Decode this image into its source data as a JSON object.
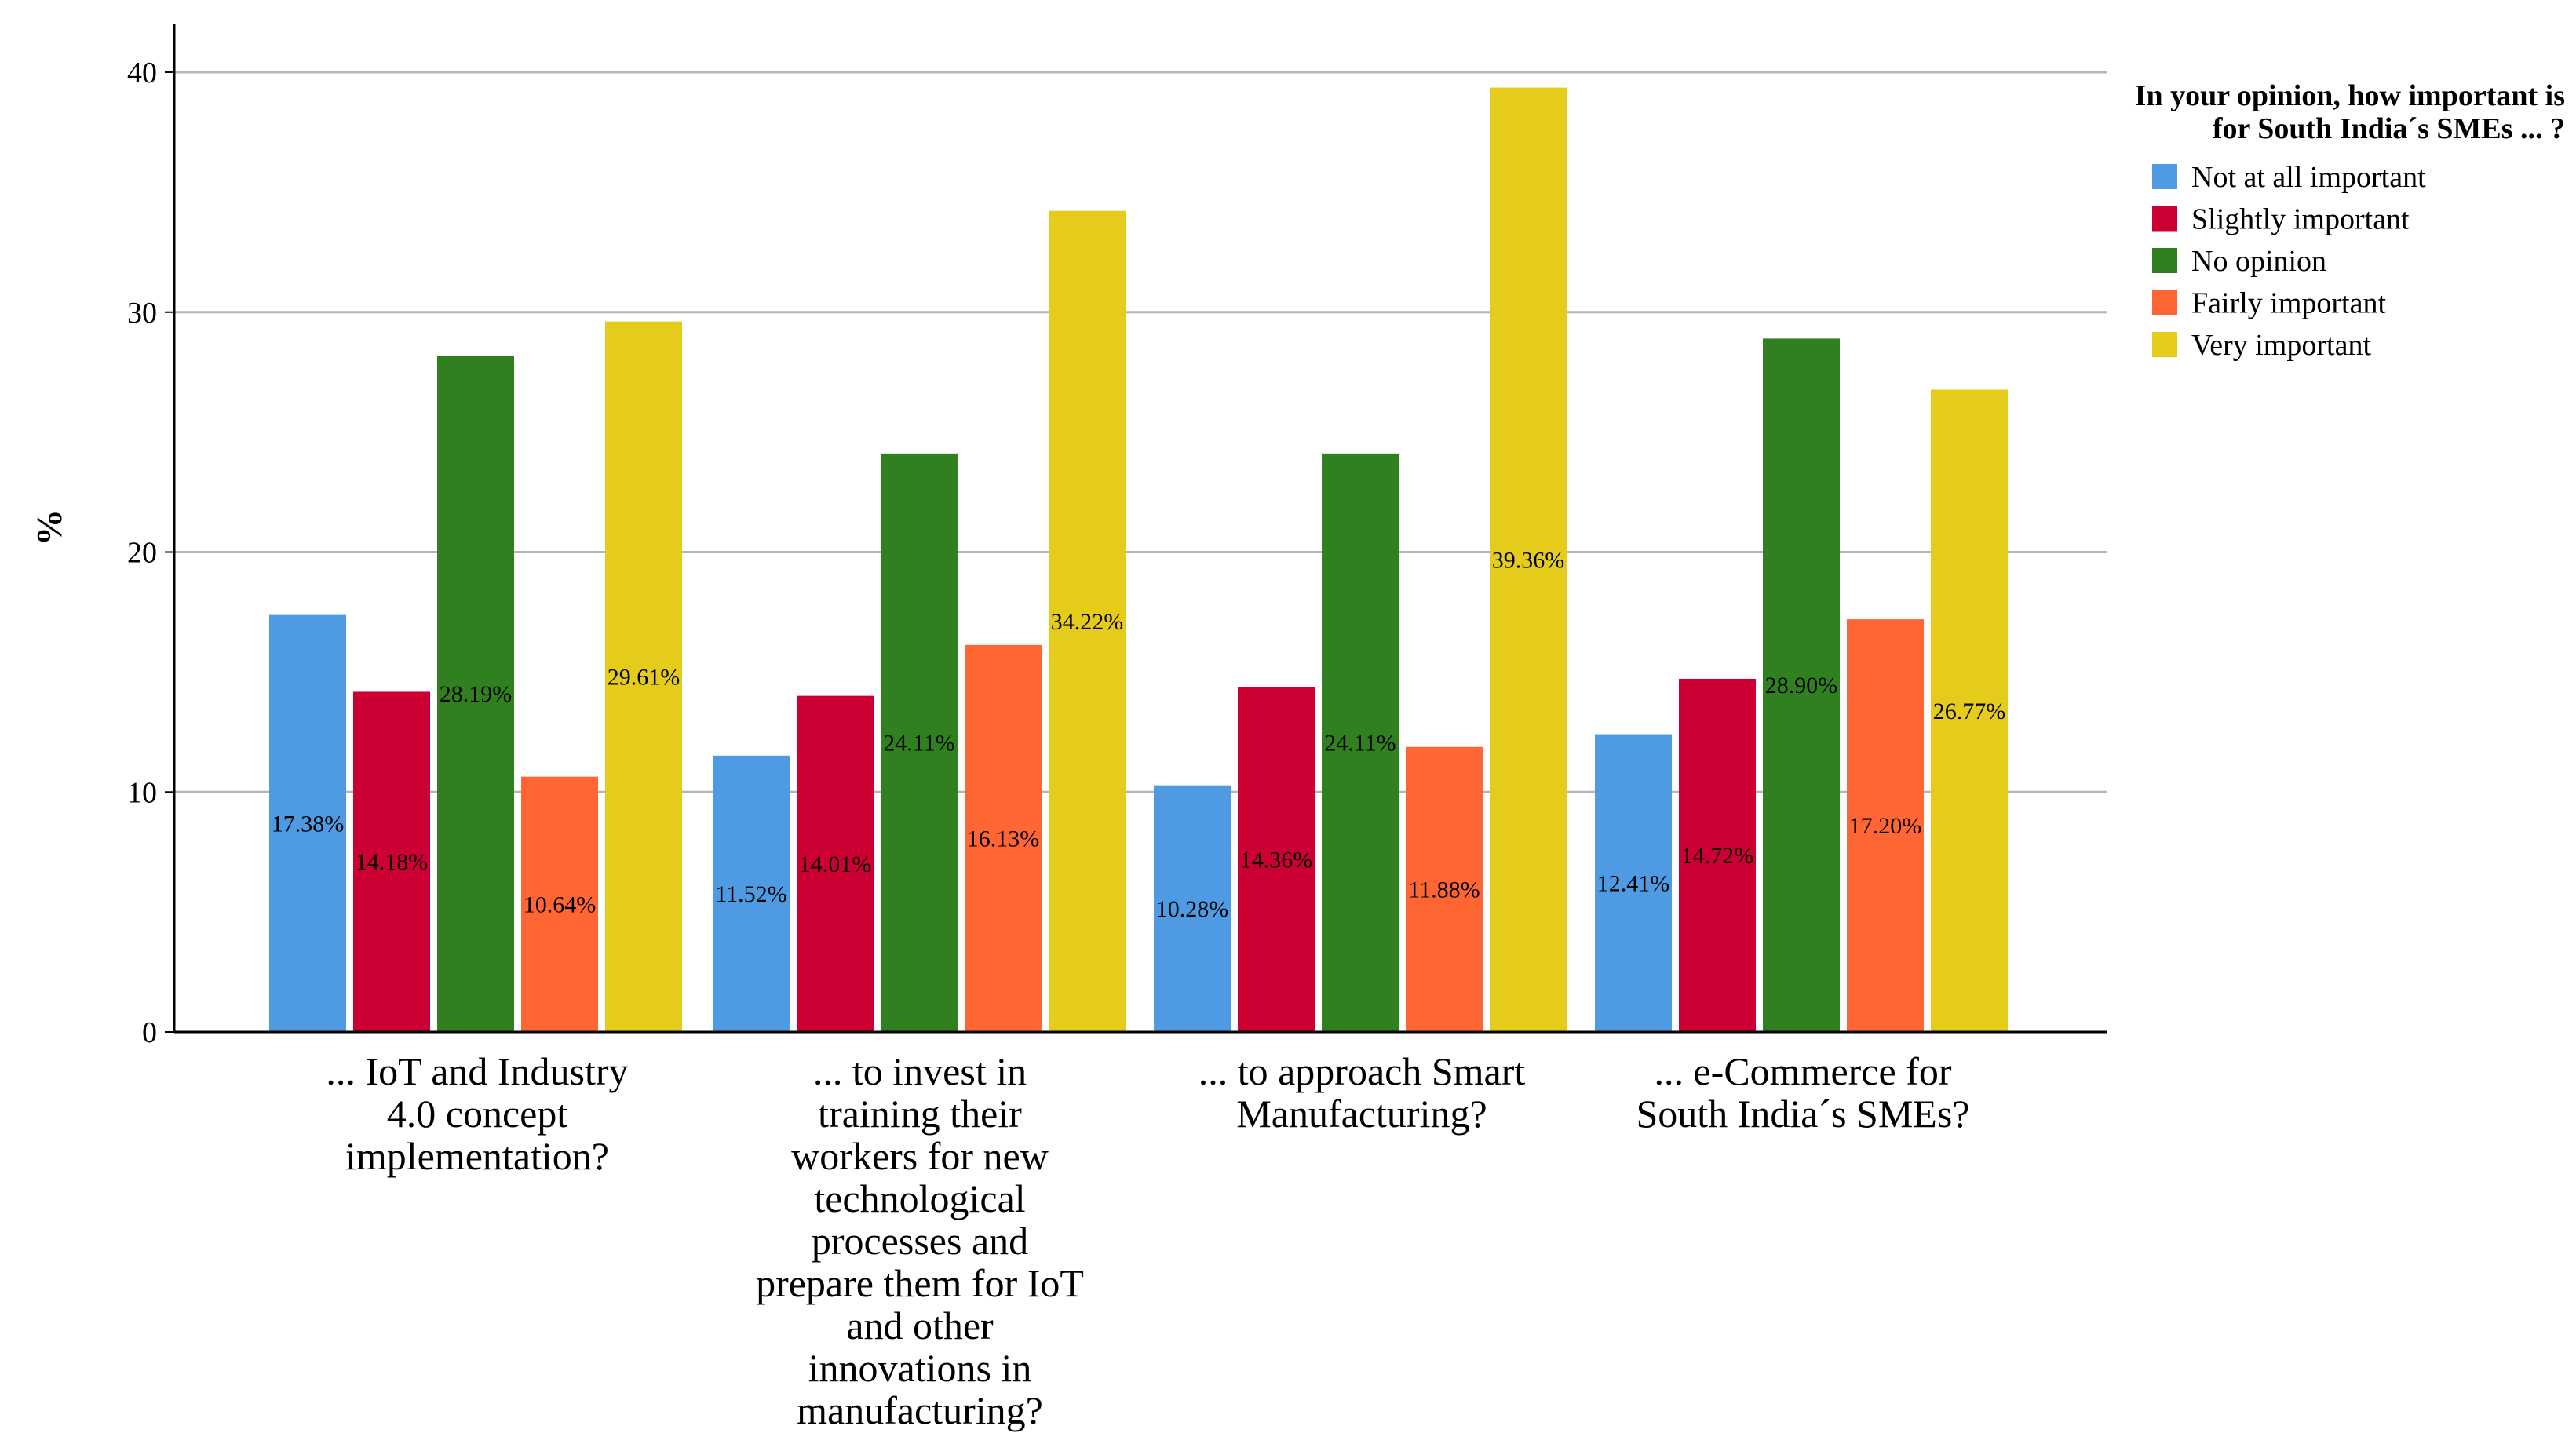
{
  "chart_data": {
    "type": "bar",
    "ylabel": "%",
    "ylim": [
      0,
      42
    ],
    "yticks": [
      0,
      10,
      20,
      30,
      40
    ],
    "grid": true,
    "legend_position": "top-right",
    "legend_title": [
      "In your opinion, how important is",
      "for South India´s SMEs ... ?"
    ],
    "categories": [
      [
        "... IoT and Industry",
        "4.0 concept",
        "implementation?"
      ],
      [
        "... to invest in",
        "training their",
        "workers for new",
        "technological",
        "processes and",
        "prepare them for IoT",
        "and other",
        "innovations in",
        "manufacturing?"
      ],
      [
        "... to approach Smart",
        "Manufacturing?"
      ],
      [
        "... e-Commerce for",
        "South India´s SMEs?"
      ]
    ],
    "series": [
      {
        "name": "Not at all important",
        "color": "#4e9be3",
        "values": [
          17.38,
          11.52,
          10.28,
          12.41
        ],
        "labels": [
          "17.38%",
          "11.52%",
          "10.28%",
          "12.41%"
        ]
      },
      {
        "name": "Slightly important",
        "color": "#cc0033",
        "values": [
          14.18,
          14.01,
          14.36,
          14.72
        ],
        "labels": [
          "14.18%",
          "14.01%",
          "14.36%",
          "14.72%"
        ]
      },
      {
        "name": "No opinion",
        "color": "#31801f",
        "values": [
          28.19,
          24.11,
          24.11,
          28.9
        ],
        "labels": [
          "28.19%",
          "24.11%",
          "24.11%",
          "28.90%"
        ]
      },
      {
        "name": "Fairly important",
        "color": "#ff6633",
        "values": [
          10.64,
          16.13,
          11.88,
          17.2
        ],
        "labels": [
          "10.64%",
          "16.13%",
          "11.88%",
          "17.20%"
        ]
      },
      {
        "name": "Very important",
        "color": "#e6cc1a",
        "values": [
          29.61,
          34.22,
          39.36,
          26.77
        ],
        "labels": [
          "29.61%",
          "34.22%",
          "39.36%",
          "26.77%"
        ]
      }
    ]
  }
}
